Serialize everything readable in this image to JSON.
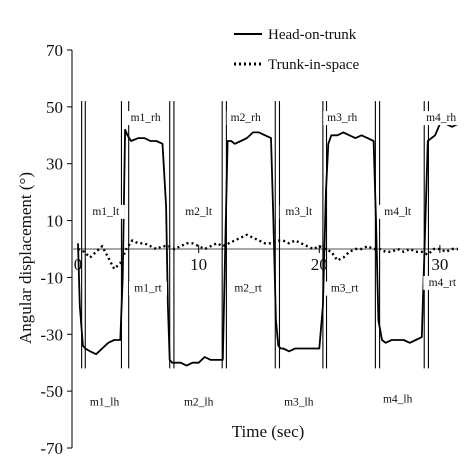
{
  "chart_data": {
    "type": "line",
    "xlabel": "Time (sec)",
    "ylabel": "Angular displacement (°)",
    "xlim": [
      -0.5,
      31.5
    ],
    "ylim": [
      -70,
      70
    ],
    "x_ticks": [
      0,
      10,
      20,
      30
    ],
    "x_tick_labels": [
      "0",
      "10",
      "20",
      "30"
    ],
    "y_ticks": [
      -70,
      -50,
      -30,
      -10,
      10,
      30,
      50,
      70
    ],
    "y_tick_labels": [
      "-70",
      "-50",
      "-30",
      "-10",
      "10",
      "30",
      "50",
      "70"
    ],
    "grid": false,
    "zero_line": true,
    "legend": {
      "placement": "top-right"
    },
    "series": [
      {
        "name": "Head-on-trunk",
        "style": "solid",
        "x": [
          0,
          0.15,
          0.4,
          0.6,
          1.0,
          1.5,
          2.0,
          2.5,
          3.0,
          3.5,
          3.7,
          3.9,
          4.1,
          4.4,
          5.0,
          5.5,
          6.0,
          6.5,
          7.0,
          7.3,
          7.45,
          7.6,
          7.8,
          8.0,
          8.5,
          9.0,
          9.5,
          10.0,
          10.5,
          11.0,
          11.5,
          12.0,
          12.2,
          12.4,
          12.7,
          13.0,
          13.5,
          14.0,
          14.5,
          15.0,
          15.5,
          16.0,
          16.2,
          16.4,
          16.6,
          16.8,
          17.0,
          17.5,
          18.0,
          18.5,
          19.0,
          19.5,
          20.0,
          20.3,
          20.55,
          20.75,
          21.0,
          21.5,
          22.0,
          22.5,
          23.0,
          23.5,
          24.0,
          24.5,
          24.7,
          24.9,
          25.2,
          25.5,
          26.0,
          26.5,
          27.0,
          27.5,
          28.0,
          28.5,
          28.8,
          29.0,
          29.3,
          29.6,
          30.0,
          30.5,
          31.0,
          31.5
        ],
        "y": [
          2,
          -20,
          -34,
          -35,
          -36,
          -37,
          -35,
          -33,
          -32,
          -32,
          -10,
          42,
          40,
          38,
          39,
          39,
          38,
          38,
          37,
          15,
          -20,
          -39,
          -40,
          -40,
          -40,
          -41,
          -40,
          -40,
          -38,
          -39,
          -39,
          -39,
          0,
          38,
          38,
          37,
          38,
          39,
          41,
          41,
          40,
          39,
          10,
          -25,
          -34,
          -35,
          -35,
          -36,
          -35,
          -35,
          -35,
          -35,
          -35,
          -20,
          20,
          37,
          40,
          40,
          41,
          40,
          39,
          40,
          39,
          38,
          10,
          -25,
          -32,
          -33,
          -32,
          -32,
          -32,
          -33,
          -32,
          -31,
          10,
          38,
          39,
          40,
          44,
          44,
          43,
          44
        ]
      },
      {
        "name": "Trunk-in-space",
        "style": "dotted",
        "x": [
          0,
          0.5,
          1.0,
          1.5,
          2.0,
          2.5,
          3.0,
          3.5,
          4.0,
          4.5,
          5.0,
          5.5,
          6.0,
          6.5,
          7.0,
          7.5,
          8.0,
          8.5,
          9.0,
          9.5,
          10.0,
          10.5,
          11.0,
          11.5,
          12.0,
          12.5,
          13.0,
          13.5,
          14.0,
          14.5,
          15.0,
          15.5,
          16.0,
          16.5,
          17.0,
          17.5,
          18.0,
          18.5,
          19.0,
          19.5,
          20.0,
          20.5,
          21.0,
          21.5,
          22.0,
          22.5,
          23.0,
          23.5,
          24.0,
          24.5,
          25.0,
          25.5,
          26.0,
          26.5,
          27.0,
          27.5,
          28.0,
          28.5,
          29.0,
          29.5,
          30.0,
          30.5,
          31.0,
          31.5
        ],
        "y": [
          0,
          -1,
          -3,
          -1,
          1,
          -3,
          -7,
          -5,
          0,
          3,
          2,
          2,
          1,
          0,
          1,
          1,
          0,
          1,
          2,
          2,
          1,
          0,
          1,
          2,
          1,
          2,
          3,
          4,
          5,
          4,
          3,
          2,
          2,
          3,
          3,
          2,
          3,
          2,
          1,
          0,
          1,
          0,
          -1,
          -4,
          -3,
          -1,
          0,
          0,
          1,
          0,
          0,
          -1,
          -1,
          0,
          -1,
          0,
          -1,
          -1,
          -2,
          0,
          0,
          -1,
          0,
          0
        ]
      }
    ],
    "boundary_x": [
      0.3,
      0.6,
      3.6,
      4.2,
      7.6,
      7.95,
      11.95,
      12.3,
      16.35,
      16.7,
      20.3,
      20.6,
      24.65,
      25.0,
      28.7,
      29.05
    ],
    "annotations": [
      {
        "text": "m1_rh",
        "x": 5.6,
        "y": 45
      },
      {
        "text": "m2_rh",
        "x": 13.9,
        "y": 45
      },
      {
        "text": "m3_rh",
        "x": 21.9,
        "y": 45
      },
      {
        "text": "m4_rh",
        "x": 30.1,
        "y": 45
      },
      {
        "text": "m1_lt",
        "x": 2.3,
        "y": 12
      },
      {
        "text": "m2_lt",
        "x": 10.0,
        "y": 12
      },
      {
        "text": "m3_lt",
        "x": 18.3,
        "y": 12
      },
      {
        "text": "m4_lt",
        "x": 26.5,
        "y": 12
      },
      {
        "text": "m1_rt",
        "x": 5.8,
        "y": -15
      },
      {
        "text": "m2_rt",
        "x": 14.1,
        "y": -15
      },
      {
        "text": "m3_rt",
        "x": 22.1,
        "y": -15
      },
      {
        "text": "m4_rt",
        "x": 30.2,
        "y": -13
      },
      {
        "text": "m1_lh",
        "x": 2.2,
        "y": -55
      },
      {
        "text": "m2_lh",
        "x": 10.0,
        "y": -55
      },
      {
        "text": "m3_lh",
        "x": 18.3,
        "y": -55
      },
      {
        "text": "m4_lh",
        "x": 26.5,
        "y": -54
      }
    ]
  }
}
